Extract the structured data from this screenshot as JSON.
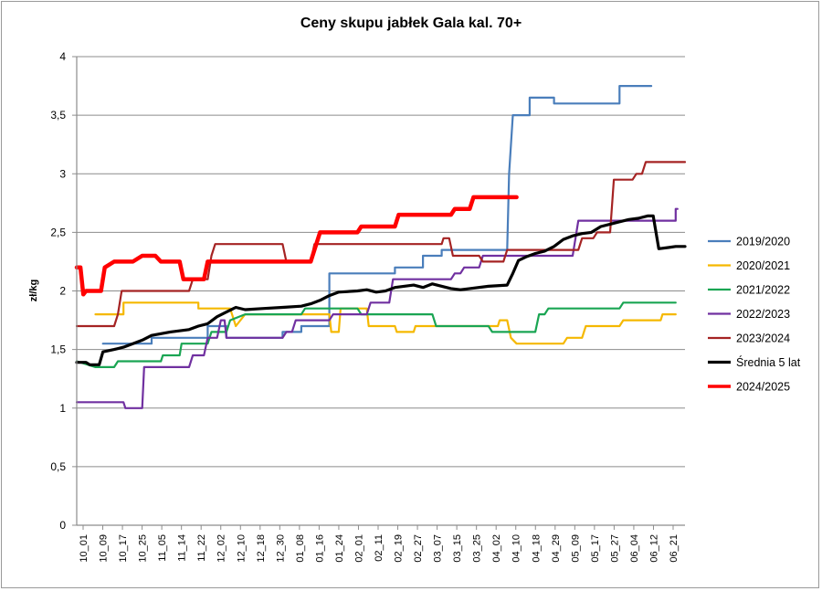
{
  "chart_data": {
    "type": "line",
    "title": "Ceny skupu jabłek Gala kal. 70+",
    "xlabel": "",
    "ylabel": "zł/kg",
    "ylim": [
      0,
      4
    ],
    "yticks": [
      "0",
      "0,5",
      "1",
      "1,5",
      "2",
      "2,5",
      "3",
      "3,5",
      "4"
    ],
    "grid": "horizontal",
    "legend_position": "right",
    "x_tick_labels": [
      "10_01",
      "10_09",
      "10_17",
      "10_25",
      "11_05",
      "11_14",
      "11_22",
      "12_02",
      "12_10",
      "12_18",
      "12_30",
      "01_08",
      "01_16",
      "01_24",
      "02_01",
      "02_11",
      "02_19",
      "02_27",
      "03_07",
      "03_15",
      "03_25",
      "04_02",
      "04_10",
      "04_18",
      "04_29",
      "05_09",
      "05_17",
      "05_27",
      "06_04",
      "06_12",
      "06_21"
    ],
    "series": [
      {
        "name": "2019/2020",
        "color": "#4a7ebb",
        "width": 2.2,
        "points": [
          [
            1.4,
            1.55
          ],
          [
            4,
            1.55
          ],
          [
            4,
            1.6
          ],
          [
            7,
            1.6
          ],
          [
            7,
            1.7
          ],
          [
            8,
            1.7
          ],
          [
            8,
            1.6
          ],
          [
            11,
            1.6
          ],
          [
            11,
            1.65
          ],
          [
            12,
            1.65
          ],
          [
            12,
            1.7
          ],
          [
            13.5,
            1.7
          ],
          [
            13.5,
            2.15
          ],
          [
            17,
            2.15
          ],
          [
            17,
            2.2
          ],
          [
            18.5,
            2.2
          ],
          [
            18.5,
            2.3
          ],
          [
            19.5,
            2.3
          ],
          [
            19.5,
            2.35
          ],
          [
            23,
            2.35
          ],
          [
            23.1,
            3.0
          ],
          [
            23.3,
            3.5
          ],
          [
            24.2,
            3.5
          ],
          [
            24.2,
            3.65
          ],
          [
            25.5,
            3.65
          ],
          [
            25.5,
            3.6
          ],
          [
            29,
            3.6
          ],
          [
            29,
            3.75
          ],
          [
            30.7,
            3.75
          ]
        ]
      },
      {
        "name": "2020/2021",
        "color": "#f5b800",
        "width": 2.2,
        "points": [
          [
            1,
            1.8
          ],
          [
            2.5,
            1.8
          ],
          [
            2.5,
            1.9
          ],
          [
            6.5,
            1.9
          ],
          [
            6.5,
            1.85
          ],
          [
            8.2,
            1.85
          ],
          [
            8.5,
            1.7
          ],
          [
            9,
            1.8
          ],
          [
            13.5,
            1.8
          ],
          [
            13.6,
            1.65
          ],
          [
            14,
            1.65
          ],
          [
            14.1,
            1.85
          ],
          [
            15.5,
            1.85
          ],
          [
            15.6,
            1.7
          ],
          [
            17,
            1.7
          ],
          [
            17.1,
            1.65
          ],
          [
            18,
            1.65
          ],
          [
            18.1,
            1.7
          ],
          [
            22.5,
            1.7
          ],
          [
            22.6,
            1.75
          ],
          [
            23,
            1.75
          ],
          [
            23.2,
            1.6
          ],
          [
            23.5,
            1.55
          ],
          [
            26,
            1.55
          ],
          [
            26.2,
            1.6
          ],
          [
            27,
            1.6
          ],
          [
            27.2,
            1.7
          ],
          [
            29,
            1.7
          ],
          [
            29.2,
            1.75
          ],
          [
            31.2,
            1.75
          ],
          [
            31.3,
            1.8
          ],
          [
            32,
            1.8
          ]
        ]
      },
      {
        "name": "2021/2022",
        "color": "#1aa553",
        "width": 2.2,
        "points": [
          [
            0,
            1.4
          ],
          [
            1.0,
            1.35
          ],
          [
            2,
            1.35
          ],
          [
            2.2,
            1.4
          ],
          [
            4.5,
            1.4
          ],
          [
            4.6,
            1.45
          ],
          [
            5.5,
            1.45
          ],
          [
            5.6,
            1.55
          ],
          [
            7,
            1.55
          ],
          [
            7.2,
            1.65
          ],
          [
            8,
            1.65
          ],
          [
            8.2,
            1.75
          ],
          [
            9,
            1.8
          ],
          [
            12,
            1.8
          ],
          [
            12.2,
            1.85
          ],
          [
            15,
            1.85
          ],
          [
            15.2,
            1.8
          ],
          [
            19,
            1.8
          ],
          [
            19.2,
            1.7
          ],
          [
            22,
            1.7
          ],
          [
            22.2,
            1.65
          ],
          [
            24.5,
            1.65
          ],
          [
            24.7,
            1.8
          ],
          [
            25,
            1.8
          ],
          [
            25.2,
            1.85
          ],
          [
            29,
            1.85
          ],
          [
            29.2,
            1.9
          ],
          [
            32,
            1.9
          ]
        ]
      },
      {
        "name": "2022/2023",
        "color": "#7030a0",
        "width": 2.2,
        "points": [
          [
            0,
            1.05
          ],
          [
            2.5,
            1.05
          ],
          [
            2.6,
            1.0
          ],
          [
            3.5,
            1.0
          ],
          [
            3.6,
            1.35
          ],
          [
            6,
            1.35
          ],
          [
            6.2,
            1.45
          ],
          [
            6.8,
            1.45
          ],
          [
            7,
            1.6
          ],
          [
            7.5,
            1.6
          ],
          [
            7.7,
            1.75
          ],
          [
            7.9,
            1.75
          ],
          [
            8.0,
            1.6
          ],
          [
            11,
            1.6
          ],
          [
            11.2,
            1.65
          ],
          [
            11.5,
            1.65
          ],
          [
            11.7,
            1.75
          ],
          [
            13.5,
            1.75
          ],
          [
            13.7,
            1.8
          ],
          [
            15.5,
            1.8
          ],
          [
            15.7,
            1.9
          ],
          [
            16.7,
            1.9
          ],
          [
            16.9,
            2.1
          ],
          [
            20,
            2.1
          ],
          [
            20.2,
            2.15
          ],
          [
            20.5,
            2.15
          ],
          [
            20.7,
            2.2
          ],
          [
            21.5,
            2.2
          ],
          [
            21.7,
            2.3
          ],
          [
            26.5,
            2.3
          ],
          [
            26.8,
            2.6
          ],
          [
            32,
            2.6
          ],
          [
            32,
            2.7
          ],
          [
            32.1,
            2.7
          ]
        ]
      },
      {
        "name": "2023/2024",
        "color": "#a52323",
        "width": 2.2,
        "points": [
          [
            0,
            1.7
          ],
          [
            2,
            1.7
          ],
          [
            2.2,
            1.8
          ],
          [
            2.4,
            2.0
          ],
          [
            6,
            2.0
          ],
          [
            6.2,
            2.1
          ],
          [
            7,
            2.1
          ],
          [
            7.2,
            2.3
          ],
          [
            7.4,
            2.4
          ],
          [
            11,
            2.4
          ],
          [
            11.2,
            2.25
          ],
          [
            12.5,
            2.25
          ],
          [
            12.7,
            2.4
          ],
          [
            19.5,
            2.4
          ],
          [
            19.6,
            2.45
          ],
          [
            19.9,
            2.45
          ],
          [
            20.1,
            2.3
          ],
          [
            21.5,
            2.3
          ],
          [
            21.7,
            2.25
          ],
          [
            22.8,
            2.25
          ],
          [
            23,
            2.35
          ],
          [
            26.8,
            2.35
          ],
          [
            27,
            2.45
          ],
          [
            27.6,
            2.45
          ],
          [
            27.8,
            2.5
          ],
          [
            28.5,
            2.5
          ],
          [
            28.7,
            2.95
          ],
          [
            29.7,
            2.95
          ],
          [
            29.9,
            3.0
          ],
          [
            30.2,
            3.0
          ],
          [
            30.4,
            3.1
          ],
          [
            32.5,
            3.1
          ]
        ]
      },
      {
        "name": "Średnia 5 lat",
        "color": "#000000",
        "width": 3.2,
        "points": [
          [
            0,
            1.39
          ],
          [
            0.5,
            1.39
          ],
          [
            0.7,
            1.37
          ],
          [
            1.2,
            1.37
          ],
          [
            1.4,
            1.48
          ],
          [
            2,
            1.5
          ],
          [
            2.5,
            1.52
          ],
          [
            3,
            1.55
          ],
          [
            3.5,
            1.58
          ],
          [
            4,
            1.62
          ],
          [
            5,
            1.65
          ],
          [
            6,
            1.67
          ],
          [
            6.5,
            1.7
          ],
          [
            7,
            1.72
          ],
          [
            7.5,
            1.78
          ],
          [
            8,
            1.82
          ],
          [
            8.5,
            1.86
          ],
          [
            9,
            1.84
          ],
          [
            10,
            1.85
          ],
          [
            11,
            1.86
          ],
          [
            12,
            1.87
          ],
          [
            12.5,
            1.89
          ],
          [
            13,
            1.92
          ],
          [
            13.5,
            1.96
          ],
          [
            14,
            1.99
          ],
          [
            15,
            2.0
          ],
          [
            15.5,
            2.01
          ],
          [
            16,
            1.99
          ],
          [
            16.5,
            2.0
          ],
          [
            17,
            2.03
          ],
          [
            18,
            2.05
          ],
          [
            18.5,
            2.03
          ],
          [
            19,
            2.06
          ],
          [
            20,
            2.02
          ],
          [
            20.5,
            2.01
          ],
          [
            21,
            2.02
          ],
          [
            22,
            2.04
          ],
          [
            23,
            2.05
          ],
          [
            23.3,
            2.15
          ],
          [
            23.6,
            2.26
          ],
          [
            24,
            2.29
          ],
          [
            24.5,
            2.32
          ],
          [
            25,
            2.34
          ],
          [
            25.5,
            2.38
          ],
          [
            26,
            2.44
          ],
          [
            26.5,
            2.47
          ],
          [
            27,
            2.49
          ],
          [
            27.5,
            2.5
          ],
          [
            28,
            2.55
          ],
          [
            28.5,
            2.57
          ],
          [
            29,
            2.59
          ],
          [
            29.5,
            2.61
          ],
          [
            30,
            2.62
          ],
          [
            30.5,
            2.64
          ],
          [
            30.8,
            2.64
          ],
          [
            31.1,
            2.36
          ],
          [
            31.6,
            2.37
          ],
          [
            32,
            2.38
          ],
          [
            32.5,
            2.38
          ]
        ]
      },
      {
        "name": "2024/2025",
        "color": "#ff0000",
        "width": 4.5,
        "points": [
          [
            0,
            2.2
          ],
          [
            0.2,
            2.2
          ],
          [
            0.35,
            1.97
          ],
          [
            0.5,
            2.0
          ],
          [
            1.3,
            2.0
          ],
          [
            1.5,
            2.2
          ],
          [
            2,
            2.25
          ],
          [
            3,
            2.25
          ],
          [
            3.5,
            2.3
          ],
          [
            4.2,
            2.3
          ],
          [
            4.5,
            2.25
          ],
          [
            5.5,
            2.25
          ],
          [
            5.7,
            2.1
          ],
          [
            6.8,
            2.1
          ],
          [
            7,
            2.25
          ],
          [
            12.5,
            2.25
          ],
          [
            12.8,
            2.4
          ],
          [
            13,
            2.5
          ],
          [
            15,
            2.5
          ],
          [
            15.2,
            2.55
          ],
          [
            17,
            2.55
          ],
          [
            17.2,
            2.65
          ],
          [
            20,
            2.65
          ],
          [
            20.2,
            2.7
          ],
          [
            21,
            2.7
          ],
          [
            21.2,
            2.8
          ],
          [
            23.5,
            2.8
          ]
        ]
      }
    ]
  }
}
